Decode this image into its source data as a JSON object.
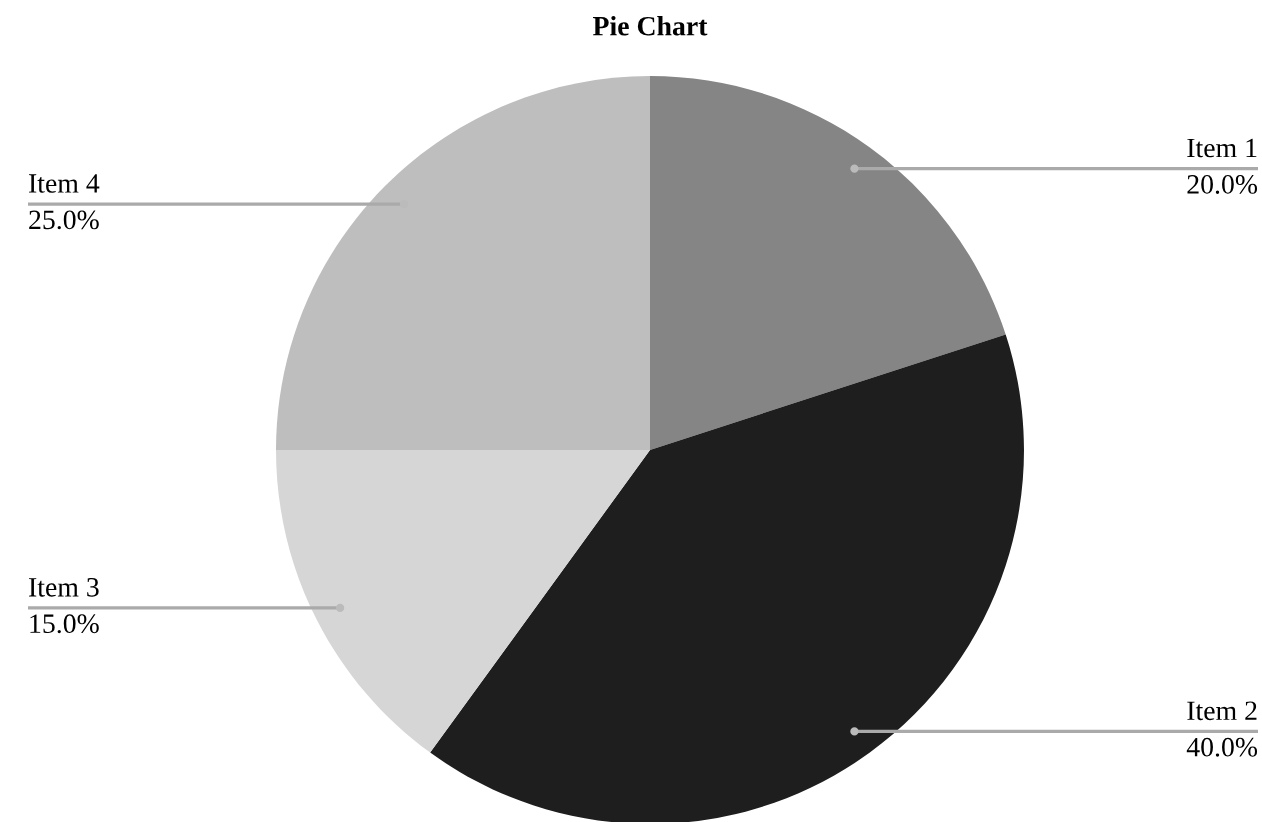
{
  "chart_data": {
    "type": "pie",
    "title": "Pie Chart",
    "categories": [
      "Item 1",
      "Item 2",
      "Item 3",
      "Item 4"
    ],
    "values": [
      20,
      40,
      15,
      25
    ],
    "colors": [
      "#858585",
      "#1e1e1e",
      "#d6d6d6",
      "#bebebe"
    ],
    "value_labels": [
      "20.0%",
      "40.0%",
      "15.0%",
      "25.0%"
    ],
    "legend": false
  }
}
